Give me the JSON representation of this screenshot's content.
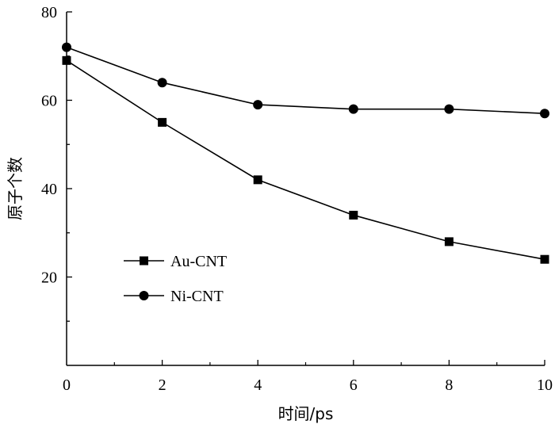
{
  "chart_data": {
    "type": "line",
    "title": "",
    "xlabel": "时间/ps",
    "ylabel": "原子个数",
    "xlim": [
      0,
      10
    ],
    "ylim": [
      0,
      80
    ],
    "xticks": [
      0,
      2,
      4,
      6,
      8,
      10
    ],
    "yticks": [
      20,
      40,
      60,
      80
    ],
    "x_tick_labels": [
      "0",
      "2",
      "4",
      "6",
      "8",
      "10"
    ],
    "y_tick_labels": [
      "20",
      "40",
      "60",
      "80"
    ],
    "grid": false,
    "legend_position": "bottom-left",
    "series": [
      {
        "name": "Au-CNT",
        "marker": "square",
        "color": "#000000",
        "x": [
          0,
          2,
          4,
          6,
          8,
          10
        ],
        "y": [
          69,
          55,
          42,
          34,
          28,
          24
        ]
      },
      {
        "name": "Ni-CNT",
        "marker": "circle",
        "color": "#000000",
        "x": [
          0,
          2,
          4,
          6,
          8,
          10
        ],
        "y": [
          72,
          64,
          59,
          58,
          58,
          57
        ]
      }
    ]
  }
}
